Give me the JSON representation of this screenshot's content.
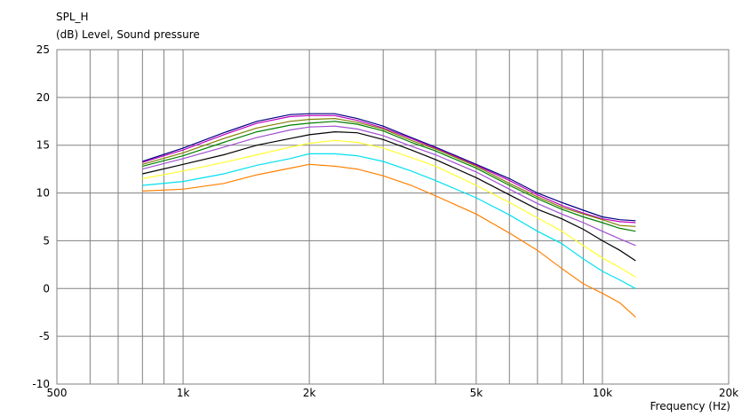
{
  "chart_data": {
    "type": "line",
    "title": "SPL_H",
    "ylabel": "(dB)  Level, Sound pressure",
    "xlabel": "Frequency  (Hz)",
    "xscale": "log",
    "xlim": [
      500,
      20000
    ],
    "ylim": [
      -10,
      25
    ],
    "grid": true,
    "x_ticks": [
      500,
      1000,
      2000,
      5000,
      10000,
      20000
    ],
    "x_tick_labels": [
      "500",
      "1k",
      "2k",
      "5k",
      "10k",
      "20k"
    ],
    "y_ticks": [
      25,
      20,
      15,
      10,
      5,
      0,
      -5,
      -10
    ],
    "y_tick_labels": [
      "25",
      "20",
      "15",
      "10",
      "5",
      "0",
      "-5",
      "-10"
    ],
    "x": [
      800,
      1000,
      1250,
      1500,
      1800,
      2000,
      2300,
      2600,
      3000,
      3500,
      4000,
      5000,
      6000,
      7000,
      8000,
      9000,
      10000,
      11000,
      12000
    ],
    "series": [
      {
        "color": "#000080",
        "values": [
          13.3,
          14.7,
          16.3,
          17.5,
          18.2,
          18.3,
          18.3,
          17.8,
          17.0,
          15.8,
          14.8,
          13.0,
          11.5,
          10.0,
          9.0,
          8.2,
          7.5,
          7.2,
          7.1
        ]
      },
      {
        "color": "#c000c0",
        "values": [
          13.2,
          14.5,
          16.1,
          17.3,
          18.0,
          18.1,
          18.1,
          17.6,
          16.8,
          15.7,
          14.7,
          12.9,
          11.3,
          9.8,
          8.7,
          7.9,
          7.3,
          7.0,
          6.9
        ]
      },
      {
        "color": "#808000",
        "values": [
          13.0,
          14.2,
          15.7,
          16.8,
          17.5,
          17.7,
          17.8,
          17.4,
          16.7,
          15.5,
          14.6,
          12.8,
          11.0,
          9.6,
          8.5,
          7.8,
          7.2,
          6.6,
          6.5
        ]
      },
      {
        "color": "#008000",
        "values": [
          12.8,
          13.9,
          15.3,
          16.4,
          17.1,
          17.3,
          17.5,
          17.2,
          16.5,
          15.3,
          14.4,
          12.6,
          10.8,
          9.4,
          8.3,
          7.5,
          6.9,
          6.3,
          6.0
        ]
      },
      {
        "color": "#a050d0",
        "values": [
          12.5,
          13.6,
          14.8,
          15.8,
          16.6,
          16.9,
          17.0,
          16.7,
          16.0,
          14.9,
          14.0,
          12.2,
          10.4,
          8.9,
          7.8,
          6.9,
          6.0,
          5.2,
          4.5
        ]
      },
      {
        "color": "#000000",
        "values": [
          12.0,
          13.0,
          14.0,
          15.0,
          15.7,
          16.1,
          16.4,
          16.3,
          15.6,
          14.5,
          13.5,
          11.6,
          9.8,
          8.3,
          7.3,
          6.2,
          5.0,
          4.0,
          2.9
        ]
      },
      {
        "color": "#ffff30",
        "values": [
          11.5,
          12.3,
          13.2,
          14.0,
          14.8,
          15.2,
          15.5,
          15.3,
          14.7,
          13.7,
          12.8,
          10.8,
          9.0,
          7.4,
          6.0,
          4.5,
          3.2,
          2.2,
          1.2
        ]
      },
      {
        "color": "#00e0f0",
        "values": [
          10.8,
          11.2,
          12.0,
          12.9,
          13.6,
          14.1,
          14.1,
          13.9,
          13.3,
          12.3,
          11.3,
          9.5,
          7.7,
          6.0,
          4.7,
          3.1,
          1.8,
          0.9,
          0.0
        ]
      },
      {
        "color": "#ff8000",
        "values": [
          10.2,
          10.4,
          11.0,
          11.9,
          12.6,
          13.0,
          12.8,
          12.5,
          11.8,
          10.8,
          9.7,
          7.8,
          5.8,
          4.0,
          2.1,
          0.5,
          -0.5,
          -1.5,
          -3.0
        ]
      }
    ]
  }
}
